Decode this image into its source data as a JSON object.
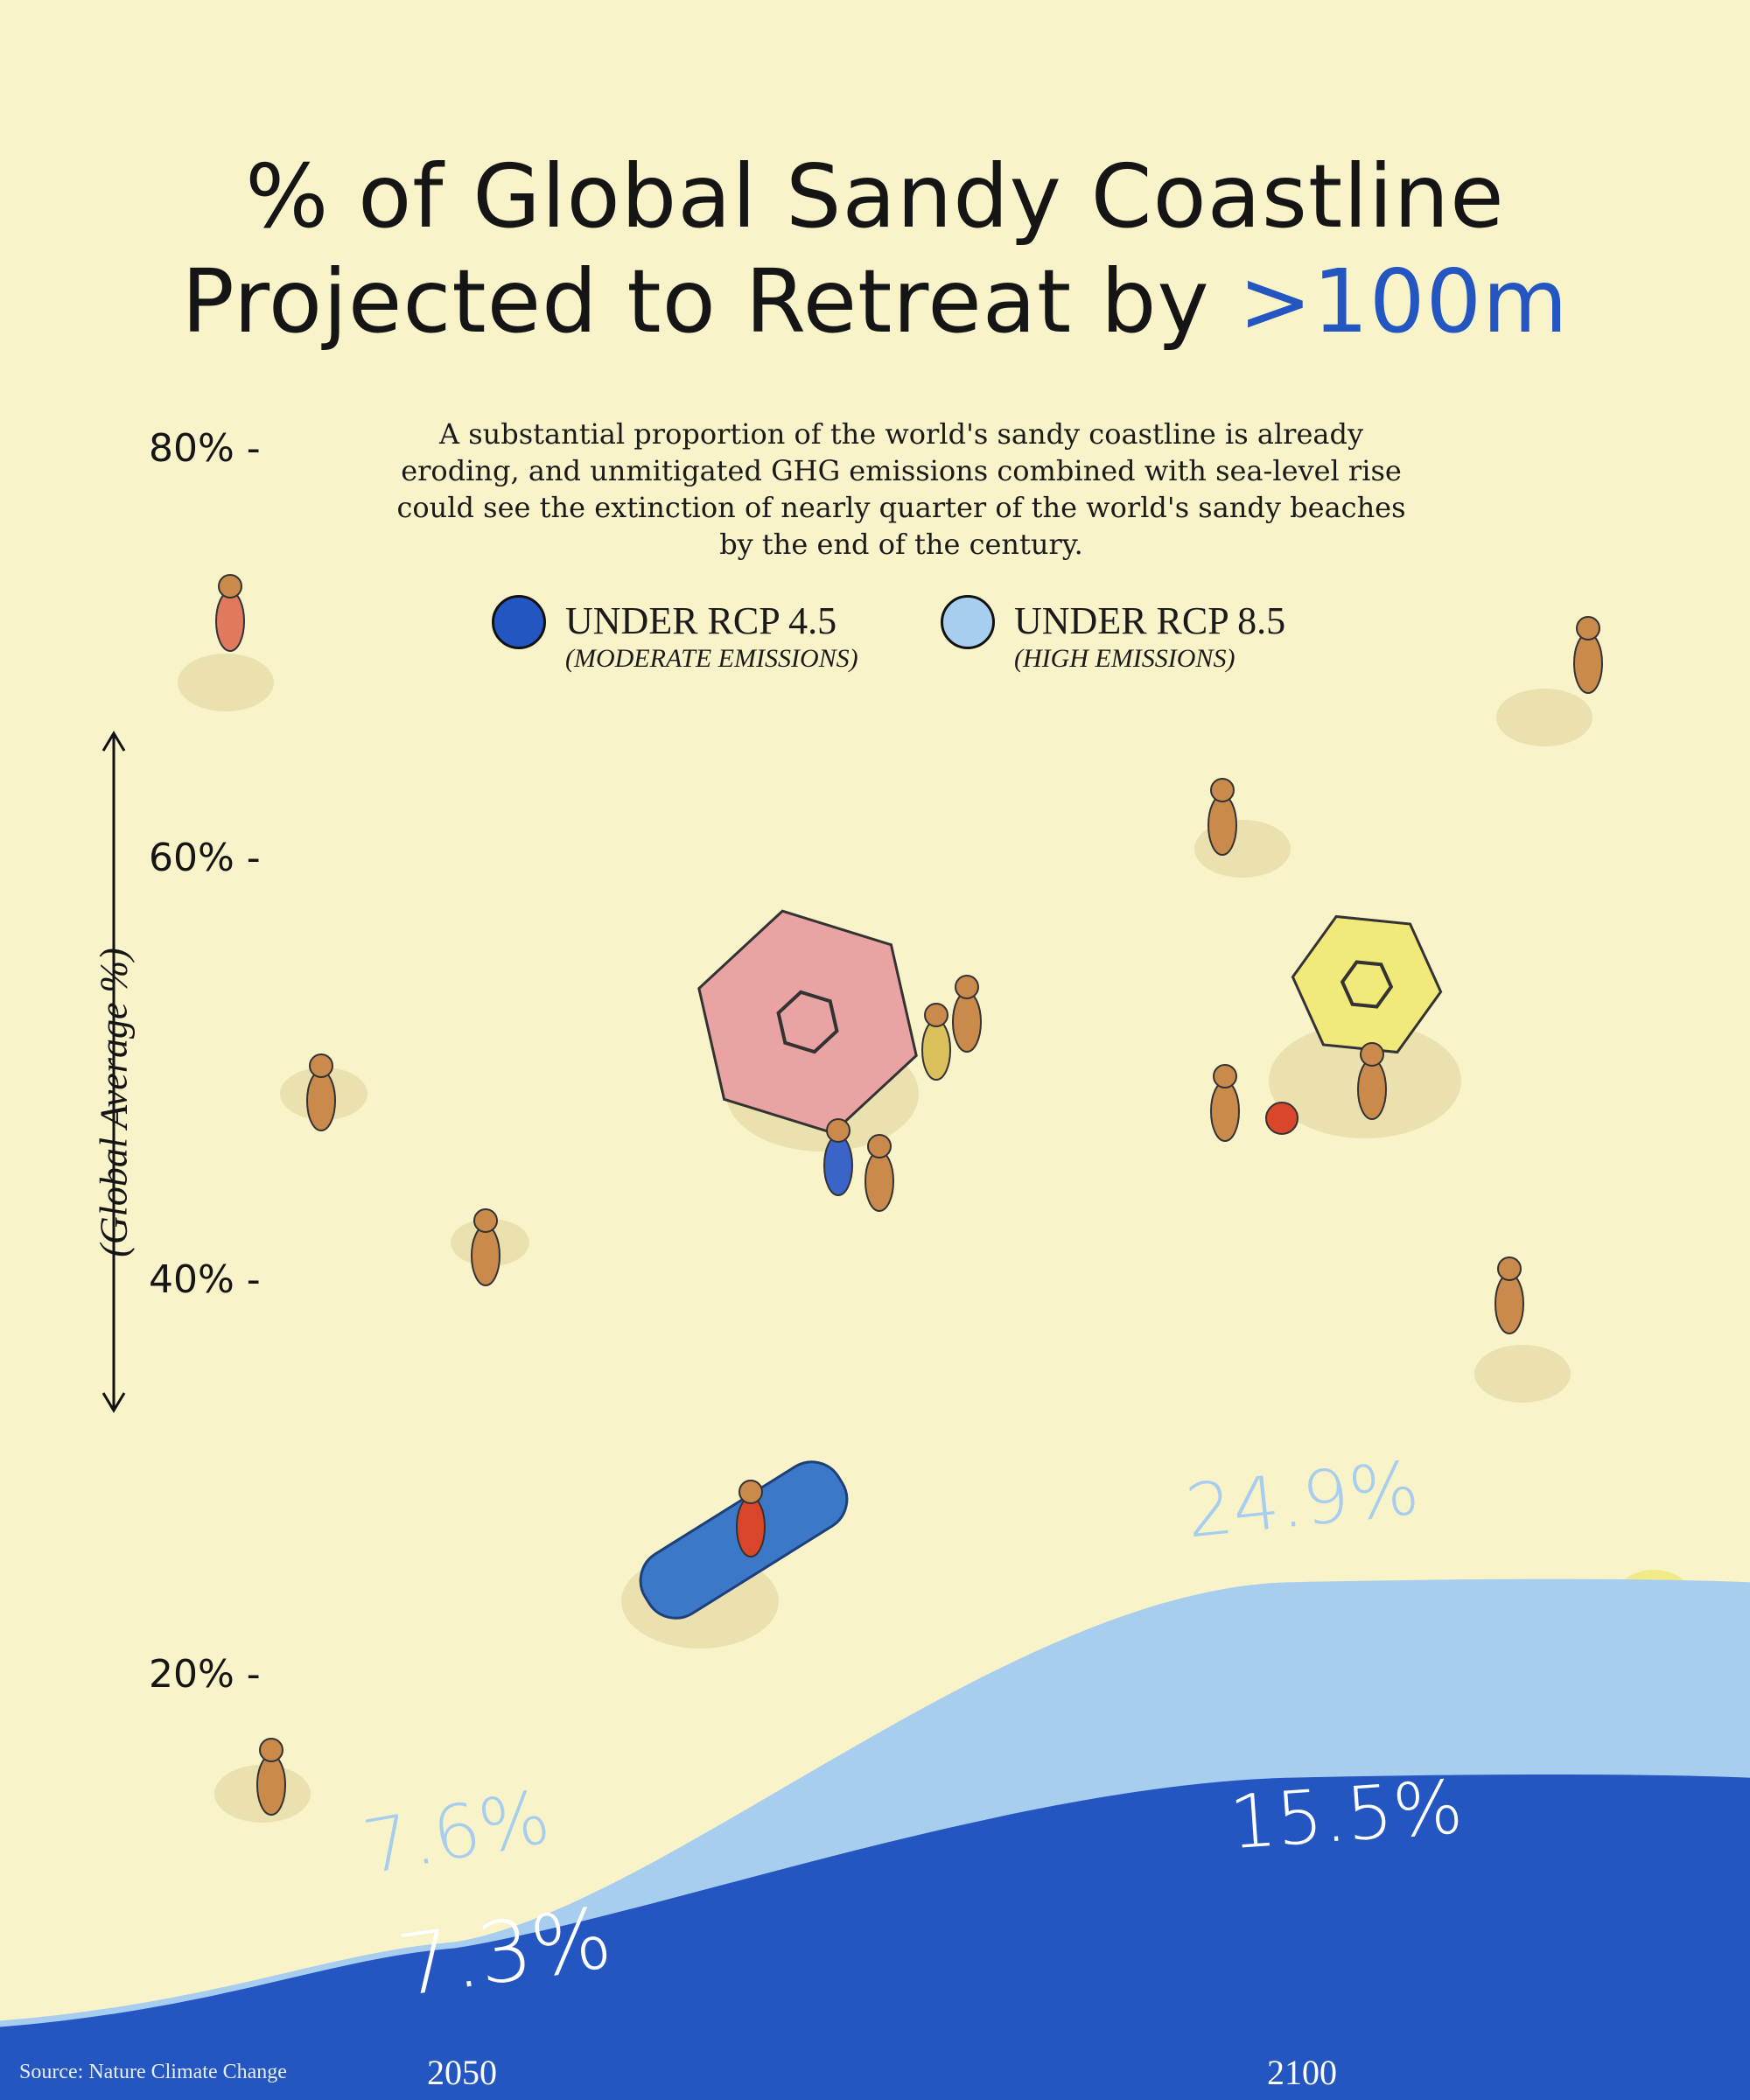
{
  "title": {
    "line1": "% of Global Sandy Coastline",
    "line2": "Projected to Retreat by ",
    "highlight": ">100m"
  },
  "subtitle": "A substantial proportion of the world's sandy coastline is already eroding, and unmitigated GHG emissions combined with sea-level rise could see the extinction of nearly quarter of the world's sandy beaches by the end of the century.",
  "legend": [
    {
      "label": "UNDER RCP 4.5",
      "sub": "(MODERATE EMISSIONS)",
      "color": "#2456c2"
    },
    {
      "label": "UNDER RCP 8.5",
      "sub": "(HIGH EMISSIONS)",
      "color": "#a7cdef"
    }
  ],
  "source": "Source: Nature Climate Change",
  "colors": {
    "background": "#f8f3c8",
    "rcp45": "#2456c2",
    "rcp85": "#a7cdef",
    "title_accent": "#2456c2"
  },
  "chart_data": {
    "type": "area",
    "x": [
      "2050",
      "2100"
    ],
    "series": [
      {
        "name": "UNDER RCP 8.5",
        "values": [
          7.6,
          24.9
        ]
      },
      {
        "name": "UNDER RCP 4.5",
        "values": [
          7.3,
          15.5
        ]
      }
    ],
    "data_labels": [
      "7.6%",
      "24.9%",
      "7.3%",
      "15.5%"
    ],
    "ylabel": "(Global Average %)",
    "yticks": [
      "80% -",
      "60% -",
      "40% -",
      "20% -"
    ],
    "ylim": [
      0,
      80
    ],
    "grid": false,
    "legend_position": "top-center"
  }
}
